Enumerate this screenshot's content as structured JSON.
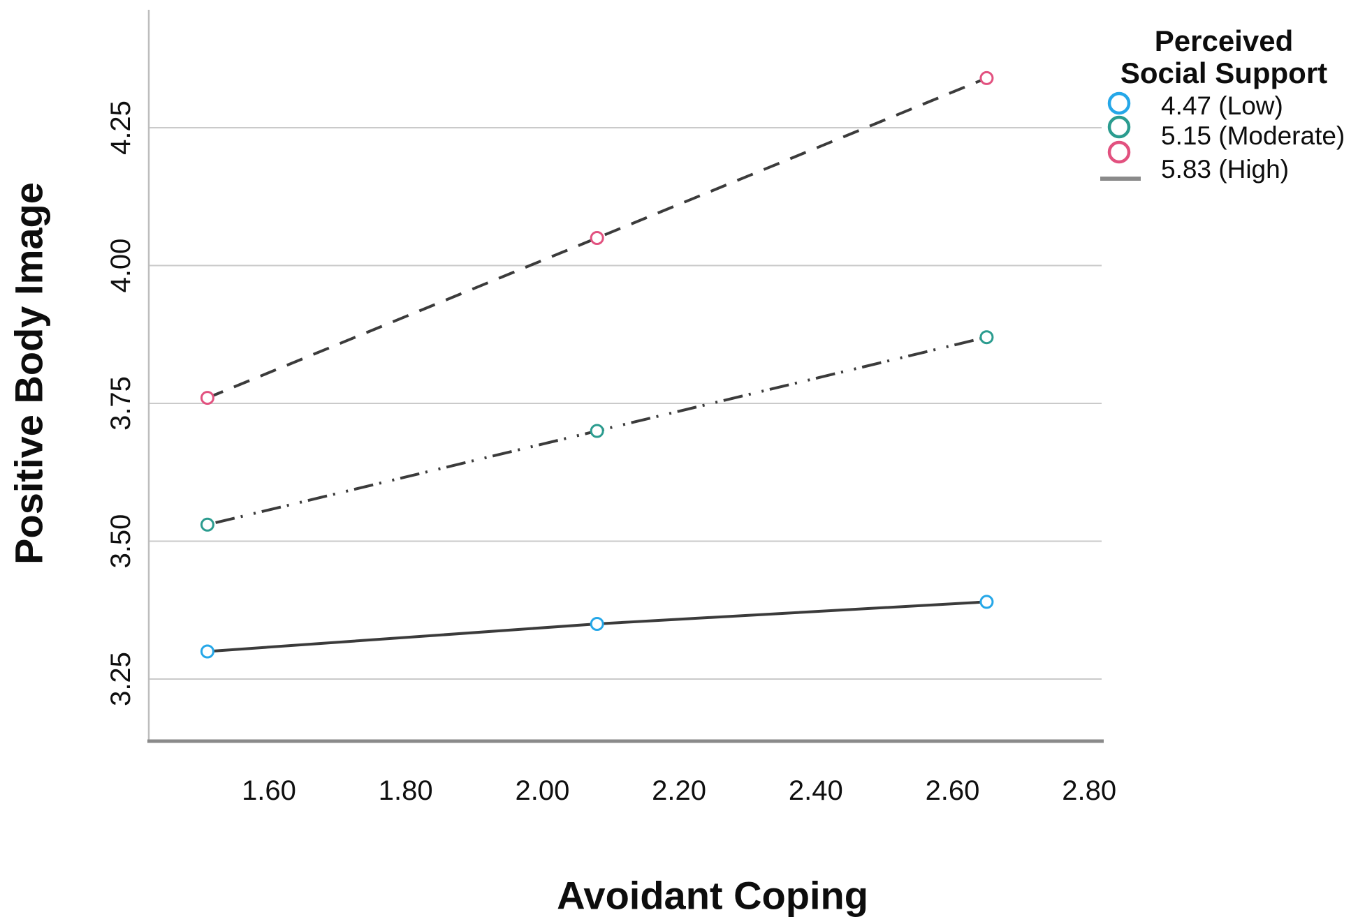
{
  "chart_data": {
    "type": "line",
    "title": "",
    "xlabel": "Avoidant Coping",
    "ylabel": "Positive Body Image",
    "x": [
      1.51,
      2.08,
      2.65
    ],
    "series": [
      {
        "name": "4.47 (Low)",
        "level": "Low",
        "values": [
          3.3,
          3.35,
          3.39
        ],
        "marker_color": "#25a7e8",
        "line_style": "solid"
      },
      {
        "name": "5.15 (Moderate)",
        "level": "Moderate",
        "values": [
          3.53,
          3.7,
          3.87
        ],
        "marker_color": "#2b9c8f",
        "line_style": "dashdot"
      },
      {
        "name": "5.83 (High)",
        "level": "High",
        "values": [
          3.76,
          4.05,
          4.34
        ],
        "marker_color": "#e2517f",
        "line_style": "dashed"
      }
    ],
    "x_ticks": [
      "1.60",
      "1.80",
      "2.00",
      "2.20",
      "2.40",
      "2.60",
      "2.80"
    ],
    "x_tick_values": [
      1.6,
      1.8,
      2.0,
      2.2,
      2.4,
      2.6,
      2.8
    ],
    "y_ticks": [
      "3.25",
      "3.50",
      "3.75",
      "4.00",
      "4.25"
    ],
    "y_tick_values": [
      3.25,
      3.5,
      3.75,
      4.0,
      4.25
    ],
    "xlim": [
      1.42,
      2.82
    ],
    "ylim": [
      3.14,
      4.46
    ],
    "grid": "horizontal-only",
    "legend": {
      "position": "top-right",
      "title_lines": [
        "Perceived",
        "Social Support"
      ],
      "line_sample_label": "5.83 (High)"
    },
    "colors": {
      "series_line": "#3b3b3b",
      "gridline": "#cacaca",
      "y_axis_line": "#bdbdbd",
      "x_axis_line": "#8a8a8a",
      "legend_line_sample": "#8a8a8a",
      "marker_fill": "#ffffff",
      "text": "#0d0d0d"
    }
  }
}
